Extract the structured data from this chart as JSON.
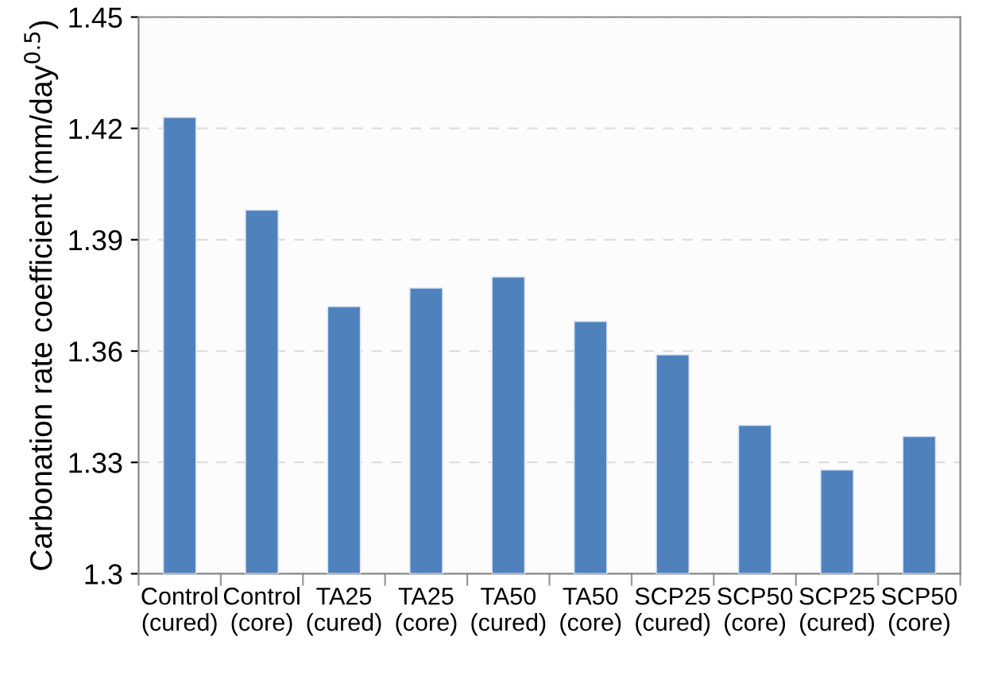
{
  "chart_data": {
    "type": "bar",
    "categories": [
      "Control\n(cured)",
      "Control\n(core)",
      "TA25\n(cured)",
      "TA25\n(core)",
      "TA50\n(cured)",
      "TA50\n(core)",
      "SCP25\n(cured)",
      "SCP50\n(core)",
      "SCP25\n(cured)",
      "SCP50\n(core)"
    ],
    "values": [
      1.423,
      1.398,
      1.372,
      1.377,
      1.38,
      1.368,
      1.359,
      1.34,
      1.328,
      1.337
    ],
    "color": "#4f81bd",
    "ylabel": "Carbonation rate coefficient (mm/day$^{0.5}$)",
    "ylim": [
      1.3,
      1.45
    ],
    "yticks": [
      1.3,
      1.33,
      1.36,
      1.39,
      1.42,
      1.45
    ],
    "grid": "y"
  }
}
